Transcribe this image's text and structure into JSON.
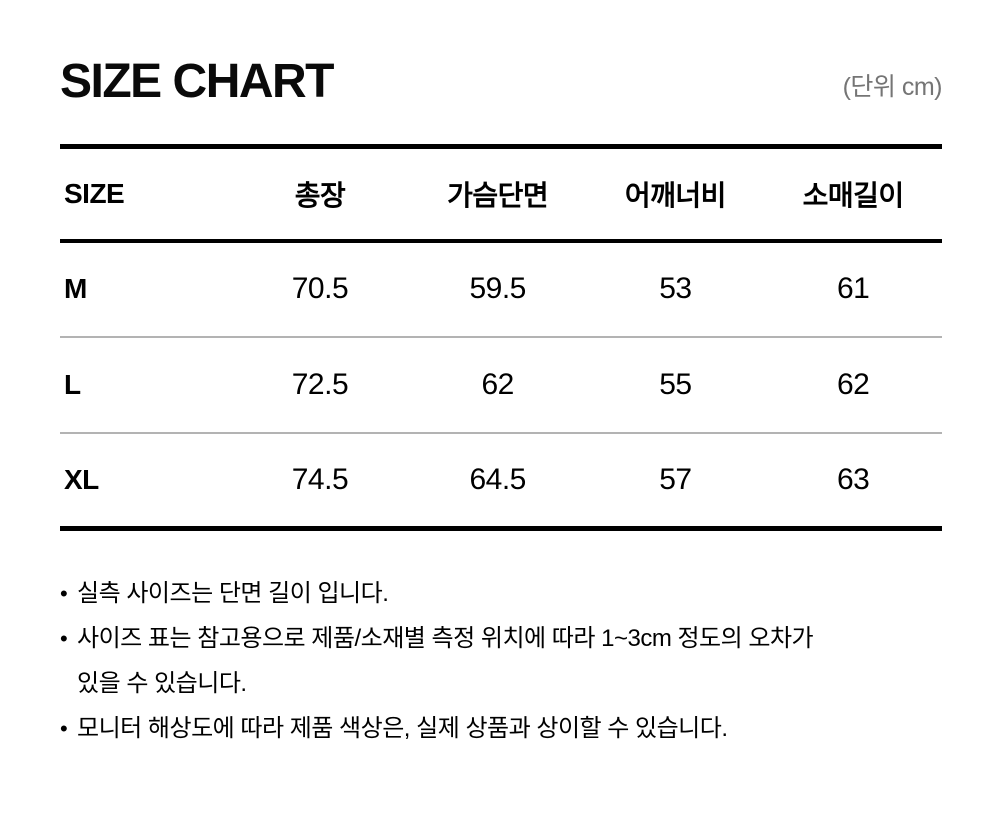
{
  "header": {
    "title": "SIZE CHART",
    "unit_label": "(단위 cm)"
  },
  "table": {
    "columns": [
      "SIZE",
      "총장",
      "가슴단면",
      "어깨너비",
      "소매길이"
    ],
    "rows": [
      {
        "size": "M",
        "values": [
          "70.5",
          "59.5",
          "53",
          "61"
        ]
      },
      {
        "size": "L",
        "values": [
          "72.5",
          "62",
          "55",
          "62"
        ]
      },
      {
        "size": "XL",
        "values": [
          "74.5",
          "64.5",
          "57",
          "63"
        ]
      }
    ]
  },
  "footer": {
    "bullet": "•",
    "notes": [
      "실측 사이즈는 단면 길이 입니다.",
      "사이즈 표는 참고용으로 제품/소재별 측정 위치에 따라 1~3cm 정도의 오차가\n있을 수 있습니다.",
      "모니터 해상도에 따라 제품 색상은, 실제 상품과 상이할 수 있습니다."
    ]
  },
  "colors": {
    "text": "#000000",
    "muted_gray": "#757575",
    "divider_strong": "#000000",
    "divider_light": "#b3b3b3"
  }
}
